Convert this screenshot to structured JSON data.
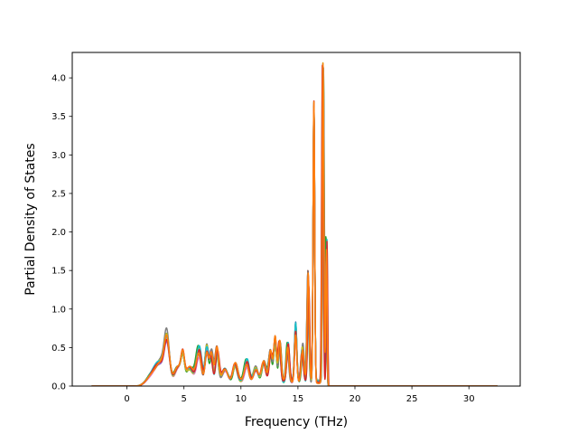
{
  "chart_data": {
    "type": "line",
    "title": "",
    "xlabel": "Frequency (THz)",
    "ylabel": "Partial Density of States",
    "xlim": [
      -4.8,
      34.5
    ],
    "ylim": [
      0.0,
      4.33
    ],
    "xticks": [
      0,
      5,
      10,
      15,
      20,
      25,
      30
    ],
    "yticks": [
      0.0,
      0.5,
      1.0,
      1.5,
      2.0,
      2.5,
      3.0,
      3.5,
      4.0
    ],
    "xtick_labels": [
      "0",
      "5",
      "10",
      "15",
      "20",
      "25",
      "30"
    ],
    "ytick_labels": [
      "0.0",
      "0.5",
      "1.0",
      "1.5",
      "2.0",
      "2.5",
      "3.0",
      "3.5",
      "4.0"
    ],
    "grid": false,
    "legend": "none",
    "data_range": [
      -3.1,
      32.5
    ],
    "peaks": [
      {
        "center": 2.3,
        "height": 0.15,
        "width": 0.5
      },
      {
        "center": 3.5,
        "height": 0.58,
        "width": 0.22
      },
      {
        "center": 3.0,
        "height": 0.25,
        "width": 0.4
      },
      {
        "center": 4.5,
        "height": 0.22,
        "width": 0.3
      },
      {
        "center": 4.9,
        "height": 0.32,
        "width": 0.15
      },
      {
        "center": 5.5,
        "height": 0.2,
        "width": 0.3
      },
      {
        "center": 6.3,
        "height": 0.45,
        "width": 0.22
      },
      {
        "center": 7.0,
        "height": 0.48,
        "width": 0.15
      },
      {
        "center": 7.4,
        "height": 0.42,
        "width": 0.15
      },
      {
        "center": 7.9,
        "height": 0.45,
        "width": 0.15
      },
      {
        "center": 8.6,
        "height": 0.18,
        "width": 0.25
      },
      {
        "center": 9.5,
        "height": 0.25,
        "width": 0.2
      },
      {
        "center": 10.5,
        "height": 0.28,
        "width": 0.2
      },
      {
        "center": 11.3,
        "height": 0.2,
        "width": 0.2
      },
      {
        "center": 12.0,
        "height": 0.3,
        "width": 0.18
      },
      {
        "center": 12.6,
        "height": 0.45,
        "width": 0.15
      },
      {
        "center": 13.0,
        "height": 0.6,
        "width": 0.12
      },
      {
        "center": 13.4,
        "height": 0.55,
        "width": 0.12
      },
      {
        "center": 14.1,
        "height": 0.5,
        "width": 0.12
      },
      {
        "center": 14.8,
        "height": 0.78,
        "width": 0.1
      },
      {
        "center": 15.4,
        "height": 0.5,
        "width": 0.12
      },
      {
        "center": 15.9,
        "height": 1.52,
        "width": 0.09
      },
      {
        "center": 16.4,
        "height": 3.6,
        "width": 0.07
      },
      {
        "center": 17.2,
        "height": 4.12,
        "width": 0.07
      },
      {
        "center": 17.5,
        "height": 1.9,
        "width": 0.06
      }
    ],
    "background_level": 0.07,
    "background_range": [
      1.0,
      17.6
    ],
    "series": [
      {
        "color": "#1f77b4",
        "scale": 0.97,
        "shift": 0.0
      },
      {
        "color": "#2ca02c",
        "scale": 1.0,
        "shift": 0.04
      },
      {
        "color": "#9467bd",
        "scale": 0.92,
        "shift": -0.03
      },
      {
        "color": "#8c564b",
        "scale": 1.0,
        "shift": 0.02
      },
      {
        "color": "#e377c2",
        "scale": 0.9,
        "shift": -0.02
      },
      {
        "color": "#7f7f7f",
        "scale": 0.98,
        "shift": 0.03
      },
      {
        "color": "#bcbd22",
        "scale": 0.95,
        "shift": -0.01
      },
      {
        "color": "#17becf",
        "scale": 1.0,
        "shift": -0.04
      },
      {
        "color": "#d62728",
        "scale": 0.98,
        "shift": -0.05
      },
      {
        "color": "#ff7f0e",
        "scale": 1.0,
        "shift": 0.0
      }
    ]
  }
}
